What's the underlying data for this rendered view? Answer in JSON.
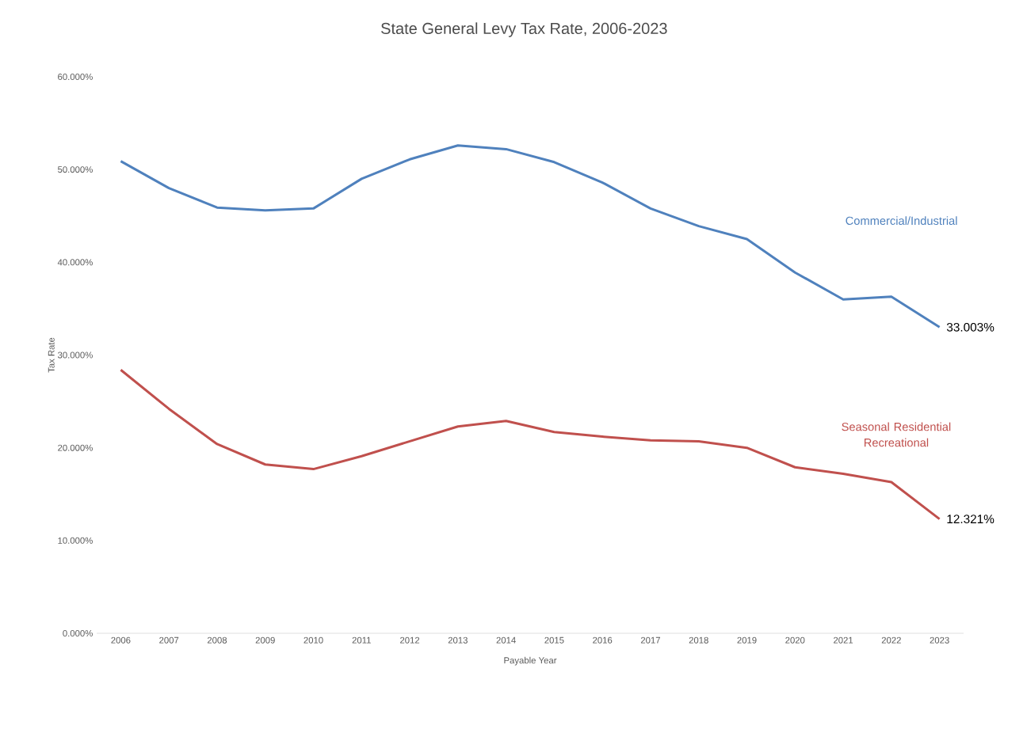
{
  "chart_data": {
    "type": "line",
    "title": "State General Levy Tax Rate, 2006-2023",
    "xlabel": "Payable Year",
    "ylabel": "Tax Rate",
    "categories": [
      "2006",
      "2007",
      "2008",
      "2009",
      "2010",
      "2011",
      "2012",
      "2013",
      "2014",
      "2015",
      "2016",
      "2017",
      "2018",
      "2019",
      "2020",
      "2021",
      "2022",
      "2023"
    ],
    "ylim": [
      0,
      60
    ],
    "yticks": [
      {
        "value": 0,
        "label": "0.000%"
      },
      {
        "value": 10,
        "label": "10.000%"
      },
      {
        "value": 20,
        "label": "20.000%"
      },
      {
        "value": 30,
        "label": "30.000%"
      },
      {
        "value": 40,
        "label": "40.000%"
      },
      {
        "value": 50,
        "label": "50.000%"
      },
      {
        "value": 60,
        "label": "60.000%"
      }
    ],
    "marker": "none",
    "series": [
      {
        "name": "Commercial/Industrial",
        "color": "#4f81bd",
        "values": [
          50.9,
          48.0,
          45.9,
          45.6,
          45.8,
          49.0,
          51.1,
          52.6,
          52.2,
          50.8,
          48.6,
          45.8,
          43.9,
          42.5,
          38.9,
          36.0,
          36.3,
          33.003
        ],
        "value_labels": [
          null,
          null,
          null,
          null,
          null,
          null,
          null,
          null,
          null,
          null,
          null,
          null,
          null,
          null,
          null,
          null,
          null,
          "33.003%"
        ]
      },
      {
        "name": "Seasonal Residential Recreational",
        "color": "#c0504d",
        "values": [
          28.4,
          24.2,
          20.4,
          18.2,
          17.7,
          19.1,
          20.7,
          22.3,
          22.9,
          21.7,
          21.2,
          20.8,
          20.7,
          20.0,
          17.9,
          17.2,
          16.3,
          12.321
        ],
        "value_labels": [
          null,
          null,
          null,
          null,
          null,
          null,
          null,
          null,
          null,
          null,
          null,
          null,
          null,
          null,
          null,
          null,
          null,
          "12.321%"
        ]
      }
    ]
  }
}
